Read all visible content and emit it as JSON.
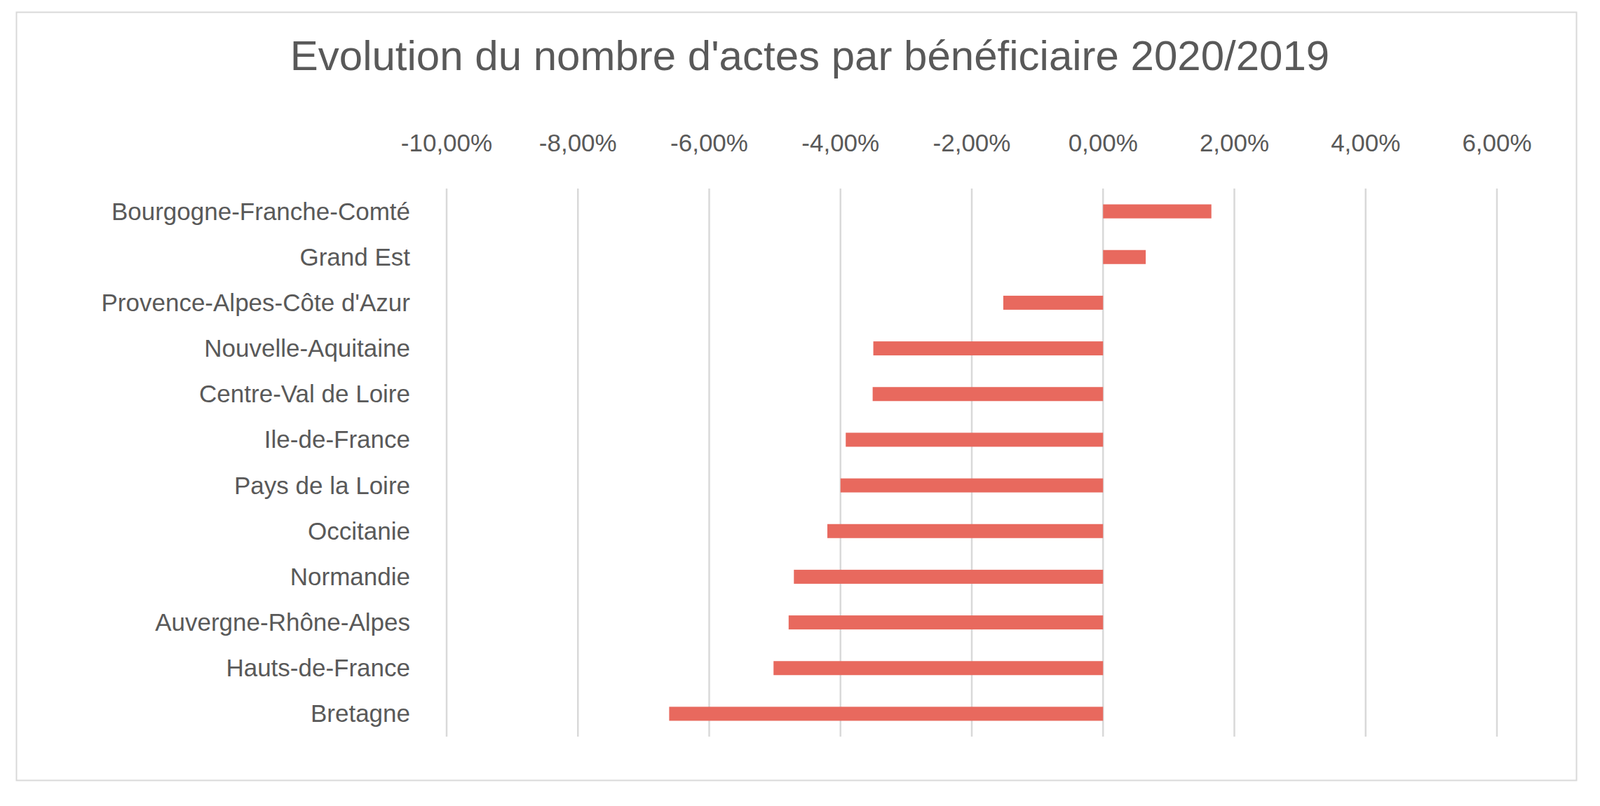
{
  "chart_data": {
    "type": "bar",
    "orientation": "horizontal",
    "title": "Evolution du nombre d'actes par bénéficiaire 2020/2019",
    "categories": [
      "Bourgogne-Franche-Comté",
      "Grand Est",
      "Provence-Alpes-Côte d'Azur",
      "Nouvelle-Aquitaine",
      "Centre-Val de Loire",
      "Ile-de-France",
      "Pays de la Loire",
      "Occitanie",
      "Normandie",
      "Auvergne-Rhône-Alpes",
      "Hauts-de-France",
      "Bretagne"
    ],
    "values": [
      1.65,
      0.65,
      -1.52,
      -3.5,
      -3.51,
      -3.92,
      -4.0,
      -4.2,
      -4.71,
      -4.79,
      -5.02,
      -6.61
    ],
    "color": "#e8695e",
    "xlim": [
      -10,
      6
    ],
    "xticks": [
      {
        "value": -10,
        "label": "-10,00%"
      },
      {
        "value": -8,
        "label": "-8,00%"
      },
      {
        "value": -6,
        "label": "-6,00%"
      },
      {
        "value": -4,
        "label": "-4,00%"
      },
      {
        "value": -2,
        "label": "-2,00%"
      },
      {
        "value": 0,
        "label": "0,00%"
      },
      {
        "value": 2,
        "label": "2,00%"
      },
      {
        "value": 4,
        "label": "4,00%"
      },
      {
        "value": 6,
        "label": "6,00%"
      }
    ],
    "grid": true
  }
}
